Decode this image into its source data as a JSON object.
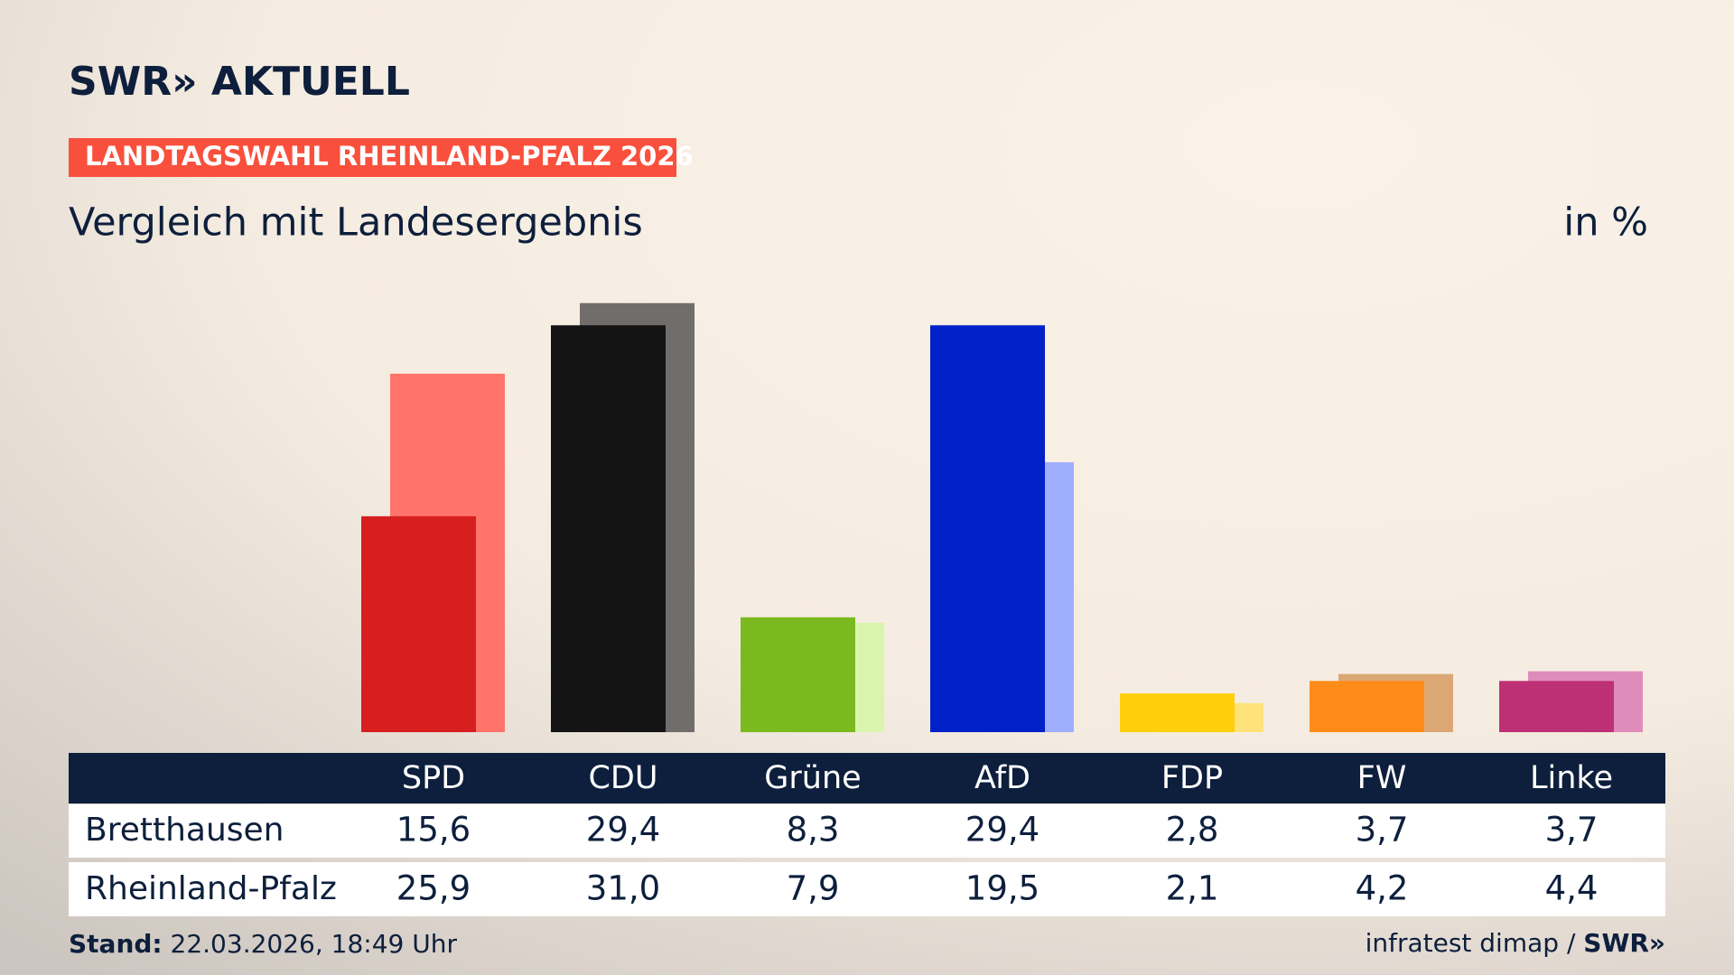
{
  "header": {
    "logo": "SWR» AKTUELL",
    "tag": "LANDTAGSWAHL RHEINLAND-PFALZ 2026"
  },
  "chart_data": {
    "type": "bar",
    "title": "Vergleich mit Landesergebnis",
    "unit": "in %",
    "categories": [
      "SPD",
      "CDU",
      "Grüne",
      "AfD",
      "FDP",
      "FW",
      "Linke"
    ],
    "series": [
      {
        "name": "Bretthausen",
        "colors": [
          "#d81f1f",
          "#141414",
          "#7aba1e",
          "#0021c8",
          "#ffcf0e",
          "#ff8c19",
          "#be3075"
        ],
        "values": [
          15.6,
          29.4,
          8.3,
          29.4,
          2.8,
          3.7,
          3.7
        ],
        "value_labels": [
          "15,6",
          "29,4",
          "8,3",
          "29,4",
          "2,8",
          "3,7",
          "3,7"
        ]
      },
      {
        "name": "Rheinland-Pfalz",
        "colors": [
          "#ff736b",
          "#706d6b",
          "#d9f5ad",
          "#a0aeff",
          "#ffe37a",
          "#dba875",
          "#e08cba"
        ],
        "values": [
          25.9,
          31.0,
          7.9,
          19.5,
          2.1,
          4.2,
          4.4
        ],
        "value_labels": [
          "25,9",
          "31,0",
          "7,9",
          "19,5",
          "2,1",
          "4,2",
          "4,4"
        ]
      }
    ]
  },
  "footer": {
    "stand_label": "Stand:",
    "stand": "22.03.2026, 18:49 Uhr",
    "source": "infratest dimap /",
    "logo": "SWR»"
  }
}
